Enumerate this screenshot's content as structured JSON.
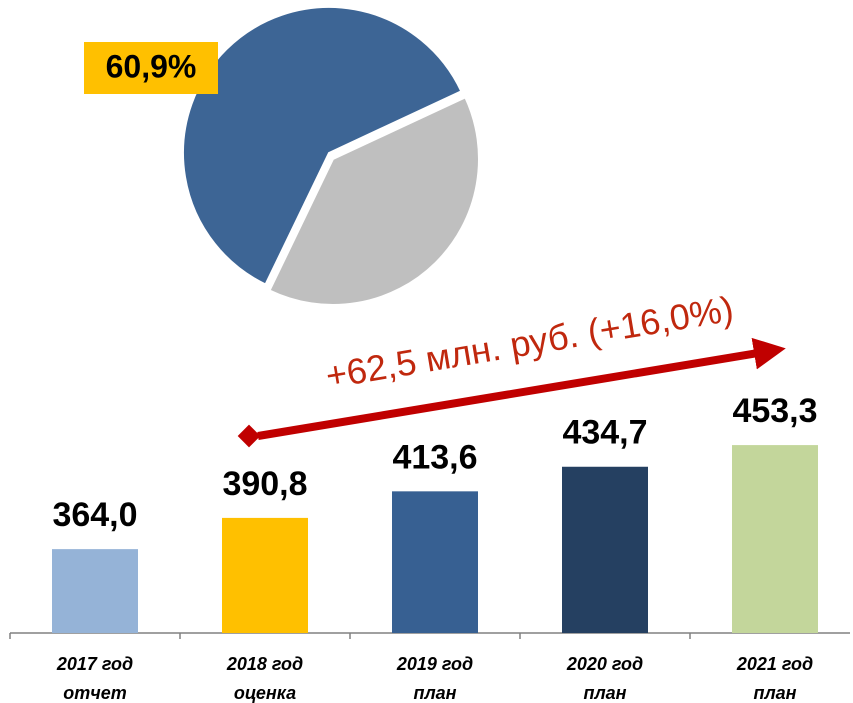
{
  "chart_data": [
    {
      "type": "pie",
      "values": [
        60.9,
        39.1
      ],
      "value_labels": [
        "60,9%",
        null
      ],
      "colors": [
        "#3d6595",
        "#bfbfbf"
      ]
    },
    {
      "type": "bar",
      "categories": [
        "2017 год",
        "2018 год",
        "2019 год",
        "2020 год",
        "2021 год"
      ],
      "sublabels": [
        "отчет",
        "оценка",
        "план",
        "план",
        "план"
      ],
      "values": [
        364.0,
        390.8,
        413.6,
        434.7,
        453.3
      ],
      "value_labels": [
        "364,0",
        "390,8",
        "413,6",
        "434,7",
        "453,3"
      ],
      "colors": [
        "#95b3d7",
        "#ffc000",
        "#376092",
        "#254061",
        "#c3d69b"
      ],
      "ylim": [
        292,
        520
      ],
      "annotation": "+62,5 млн. руб. (+16,0%)"
    }
  ]
}
